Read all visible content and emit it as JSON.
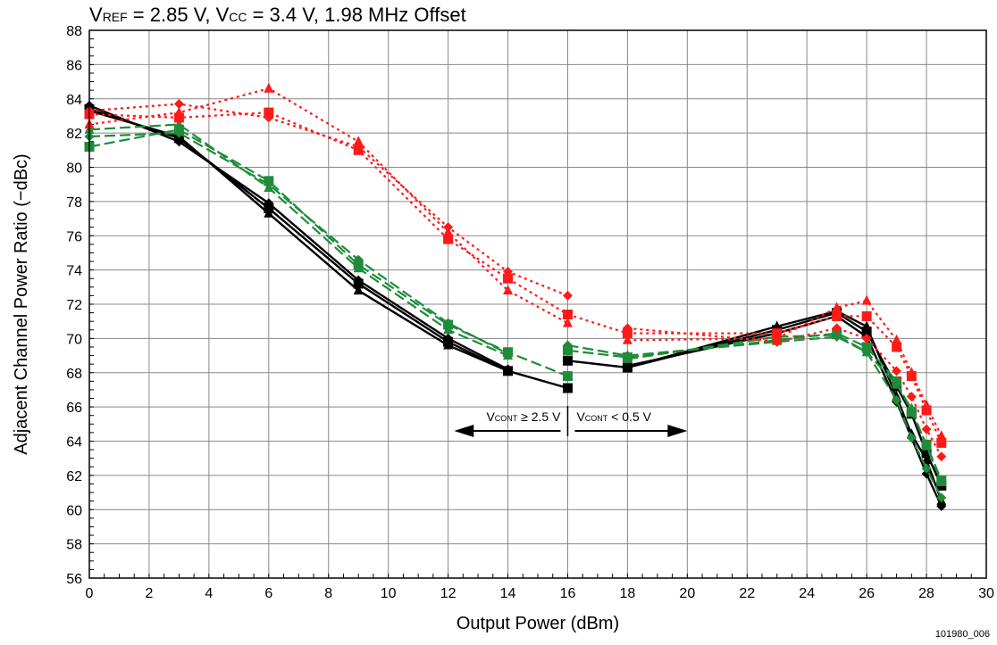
{
  "chart_data": {
    "type": "line",
    "title": {
      "v1": "V",
      "v1_sub": "REF",
      "v1_rest": " = 2.85 V, V",
      "v2_sub": "CC",
      "v2_rest": " = 3.4 V, 1.98 MHz Offset"
    },
    "xlabel": "Output Power (dBm)",
    "ylabel": "Adjacent Channel Power Ratio (−dBc)",
    "xlim": [
      0,
      30
    ],
    "ylim": [
      56,
      88
    ],
    "xticks": [
      0,
      2,
      4,
      6,
      8,
      10,
      12,
      14,
      16,
      18,
      20,
      22,
      24,
      26,
      28,
      30
    ],
    "yticks": [
      56,
      58,
      60,
      62,
      64,
      66,
      68,
      70,
      72,
      74,
      76,
      78,
      80,
      82,
      84,
      86,
      88
    ],
    "xtick_labels": [
      "0",
      "2",
      "4",
      "6",
      "8",
      "10",
      "12",
      "14",
      "16",
      "18",
      "20",
      "22",
      "24",
      "26",
      "28",
      "30"
    ],
    "ytick_labels": [
      "56",
      "58",
      "60",
      "62",
      "64",
      "66",
      "68",
      "70",
      "72",
      "74",
      "76",
      "78",
      "80",
      "82",
      "84",
      "86",
      "88"
    ],
    "grid": true,
    "figure_id": "101980_006",
    "annotation": {
      "left_v": "V",
      "left_sub": "CONT",
      "left_rest": " ≥ 2.5 V",
      "right_v": "V",
      "right_sub": "CONT",
      "right_rest": " < 0.5 V",
      "split_x": 16,
      "arrow_y": 64.6,
      "left_end_x": 12.2,
      "right_end_x": 20.0
    },
    "colors": {
      "black": "#000000",
      "green": "#1e8c3a",
      "red": "#ff1a1a"
    },
    "series": [
      {
        "color": "black",
        "dash": "solid",
        "marker": "square",
        "segments": [
          [
            [
              0,
              83.4
            ],
            [
              3,
              81.7
            ],
            [
              6,
              77.6
            ],
            [
              9,
              73.2
            ],
            [
              12,
              69.8
            ],
            [
              14,
              68.1
            ],
            [
              16,
              67.1
            ]
          ],
          [
            [
              16,
              68.7
            ],
            [
              18,
              68.3
            ],
            [
              23,
              70.5
            ],
            [
              25,
              71.5
            ],
            [
              26,
              70.4
            ],
            [
              27,
              67.2
            ],
            [
              27.5,
              65.6
            ],
            [
              28,
              63.3
            ],
            [
              28.5,
              61.4
            ]
          ]
        ]
      },
      {
        "color": "black",
        "dash": "solid",
        "marker": "triangle",
        "segments": [
          [
            [
              0,
              83.3
            ],
            [
              3,
              81.8
            ],
            [
              6,
              77.3
            ],
            [
              9,
              72.8
            ],
            [
              12,
              69.6
            ],
            [
              14,
              68.1
            ]
          ],
          [
            [
              18,
              68.3
            ],
            [
              23,
              70.7
            ],
            [
              25,
              71.6
            ],
            [
              26,
              70.7
            ],
            [
              27,
              66.6
            ],
            [
              27.5,
              64.4
            ],
            [
              28,
              62.9
            ],
            [
              28.5,
              60.5
            ]
          ]
        ]
      },
      {
        "color": "black",
        "dash": "solid",
        "marker": "diamond",
        "segments": [
          [
            [
              0,
              83.6
            ],
            [
              3,
              81.5
            ],
            [
              6,
              77.9
            ],
            [
              9,
              73.4
            ],
            [
              12,
              70.0
            ],
            [
              14,
              68.2
            ]
          ],
          [
            [
              18,
              68.4
            ],
            [
              23,
              70.3
            ],
            [
              25,
              71.3
            ],
            [
              26,
              70.1
            ],
            [
              27,
              66.3
            ],
            [
              27.5,
              64.2
            ],
            [
              28,
              62.1
            ],
            [
              28.5,
              60.2
            ]
          ]
        ]
      },
      {
        "color": "green",
        "dash": "dash",
        "marker": "square",
        "segments": [
          [
            [
              0,
              81.2
            ],
            [
              3,
              82.2
            ],
            [
              6,
              79.2
            ],
            [
              9,
              74.3
            ],
            [
              12,
              70.8
            ],
            [
              14,
              69.2
            ],
            [
              16,
              67.8
            ]
          ],
          [
            [
              16,
              69.3
            ],
            [
              18,
              68.9
            ],
            [
              23,
              69.9
            ],
            [
              25,
              70.3
            ],
            [
              26,
              69.5
            ],
            [
              27,
              67.5
            ],
            [
              27.5,
              65.7
            ],
            [
              28,
              63.8
            ],
            [
              28.5,
              61.7
            ]
          ]
        ]
      },
      {
        "color": "green",
        "dash": "dash",
        "marker": "triangle",
        "segments": [
          [
            [
              0,
              82.2
            ],
            [
              3,
              82.5
            ],
            [
              6,
              78.8
            ],
            [
              9,
              74.1
            ],
            [
              12,
              70.5
            ],
            [
              14,
              69.0
            ]
          ],
          [
            [
              18,
              68.8
            ],
            [
              23,
              70.1
            ],
            [
              25,
              70.2
            ],
            [
              26,
              69.2
            ],
            [
              27,
              67.3
            ],
            [
              27.5,
              65.9
            ],
            [
              28,
              63.7
            ],
            [
              28.5,
              61.6
            ]
          ]
        ]
      },
      {
        "color": "green",
        "dash": "dash",
        "marker": "diamond",
        "segments": [
          [
            [
              0,
              81.8
            ],
            [
              3,
              82.0
            ],
            [
              6,
              79.0
            ],
            [
              9,
              74.6
            ],
            [
              12,
              70.9
            ],
            [
              14,
              69.1
            ]
          ],
          [
            [
              16,
              69.6
            ],
            [
              18,
              69.0
            ],
            [
              23,
              69.8
            ],
            [
              25,
              70.1
            ],
            [
              26,
              69.2
            ],
            [
              27,
              66.4
            ],
            [
              27.5,
              64.2
            ],
            [
              28,
              62.4
            ],
            [
              28.5,
              60.7
            ]
          ]
        ]
      },
      {
        "color": "red",
        "dash": "dot",
        "marker": "square",
        "segments": [
          [
            [
              0,
              83.1
            ],
            [
              3,
              82.9
            ],
            [
              6,
              83.2
            ],
            [
              9,
              81.0
            ],
            [
              12,
              75.8
            ],
            [
              14,
              73.5
            ],
            [
              16,
              71.4
            ]
          ],
          [
            [
              16,
              71.4
            ],
            [
              18,
              70.3
            ],
            [
              23,
              70.3
            ],
            [
              25,
              71.3
            ],
            [
              26,
              71.3
            ],
            [
              27,
              69.5
            ],
            [
              27.5,
              67.8
            ],
            [
              28,
              65.8
            ],
            [
              28.5,
              63.9
            ]
          ]
        ]
      },
      {
        "color": "red",
        "dash": "dot",
        "marker": "triangle",
        "segments": [
          [
            [
              0,
              82.5
            ],
            [
              3,
              83.2
            ],
            [
              6,
              84.6
            ],
            [
              9,
              81.5
            ],
            [
              12,
              76.2
            ],
            [
              14,
              72.8
            ],
            [
              16,
              70.9
            ]
          ],
          [
            [
              18,
              69.9
            ],
            [
              23,
              70.0
            ],
            [
              25,
              71.8
            ],
            [
              26,
              72.2
            ],
            [
              27,
              69.9
            ],
            [
              27.5,
              68.0
            ],
            [
              28,
              66.1
            ],
            [
              28.5,
              64.3
            ]
          ]
        ]
      },
      {
        "color": "red",
        "dash": "dot",
        "marker": "diamond",
        "segments": [
          [
            [
              0,
              83.3
            ],
            [
              3,
              83.7
            ],
            [
              6,
              82.9
            ],
            [
              9,
              81.2
            ],
            [
              12,
              76.5
            ],
            [
              14,
              73.9
            ],
            [
              16,
              72.5
            ]
          ],
          [
            [
              18,
              70.6
            ],
            [
              23,
              69.8
            ],
            [
              25,
              70.6
            ],
            [
              26,
              70.0
            ],
            [
              27,
              68.1
            ],
            [
              27.5,
              66.6
            ],
            [
              28,
              64.7
            ],
            [
              28.5,
              63.1
            ]
          ]
        ]
      }
    ]
  }
}
